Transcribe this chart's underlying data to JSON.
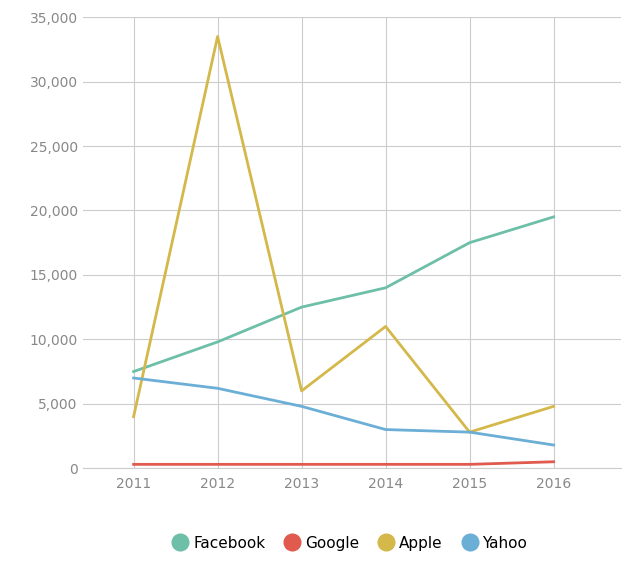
{
  "years": [
    2011,
    2012,
    2013,
    2014,
    2015,
    2016
  ],
  "facebook": [
    7500,
    9800,
    12500,
    14000,
    17500,
    19500
  ],
  "google": [
    300,
    300,
    300,
    300,
    300,
    500
  ],
  "apple": [
    4000,
    33500,
    6000,
    11000,
    2800,
    4800
  ],
  "yahoo": [
    7000,
    6200,
    4800,
    3000,
    2800,
    1800
  ],
  "colors": {
    "facebook": "#6dbfa8",
    "google": "#e05a4e",
    "apple": "#d4b84a",
    "yahoo": "#6baed6"
  },
  "legend_labels": [
    "Facebook",
    "Google",
    "Apple",
    "Yahoo"
  ],
  "ylim": [
    0,
    35000
  ],
  "yticks": [
    0,
    5000,
    10000,
    15000,
    20000,
    25000,
    30000,
    35000
  ],
  "xticks": [
    2011,
    2012,
    2013,
    2014,
    2015,
    2016
  ],
  "background_color": "#ffffff",
  "grid_color": "#cccccc",
  "line_width": 2.0
}
